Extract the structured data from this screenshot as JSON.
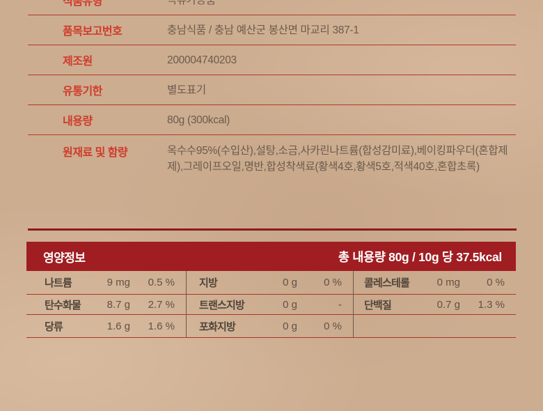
{
  "info_table": {
    "rows": [
      {
        "label": "식품유형",
        "value": "곡류가공품"
      },
      {
        "label": "품목보고번호",
        "value": "충남식품 / 충남 예산군 봉산면 마교리 387-1"
      },
      {
        "label": "제조원",
        "value": "200004740203"
      },
      {
        "label": "유통기한",
        "value": "별도표기"
      },
      {
        "label": "내용량",
        "value": "80g (300kcal)"
      },
      {
        "label": "원재료 및 함량",
        "value": "옥수수95%(수입산),설탕,소금,사카린나트륨(합성감미료),베이킹파우더(혼합제제),그레이프오일,명반,합성착색료(황색4호,황색5호,적색40호,혼합초록)"
      }
    ]
  },
  "nutrition": {
    "title": "영양정보",
    "serving_info": "총 내용량 80g / 10g 당 37.5kcal",
    "facts": [
      {
        "name": "나트륨",
        "amount": "9 mg",
        "dv": "0.5 %"
      },
      {
        "name": "지방",
        "amount": "0 g",
        "dv": "0 %"
      },
      {
        "name": "콜레스테롤",
        "amount": "0 mg",
        "dv": "0 %"
      },
      {
        "name": "탄수화물",
        "amount": "8.7 g",
        "dv": "2.7 %"
      },
      {
        "name": "트랜스지방",
        "amount": "0 g",
        "dv": "-"
      },
      {
        "name": "단백질",
        "amount": "0.7 g",
        "dv": "1.3 %"
      },
      {
        "name": "당류",
        "amount": "1.6 g",
        "dv": "1.6 %"
      },
      {
        "name": "포화지방",
        "amount": "0 g",
        "dv": "0 %"
      }
    ]
  },
  "colors": {
    "background": "#cdad90",
    "label_red": "#cf3b2b",
    "bar_red": "#a01d22",
    "rule_red": "#ac3526",
    "thick_rule_red": "#8c1a1c",
    "divider_brown": "#6a5849",
    "text_dark": "#5f5245"
  }
}
